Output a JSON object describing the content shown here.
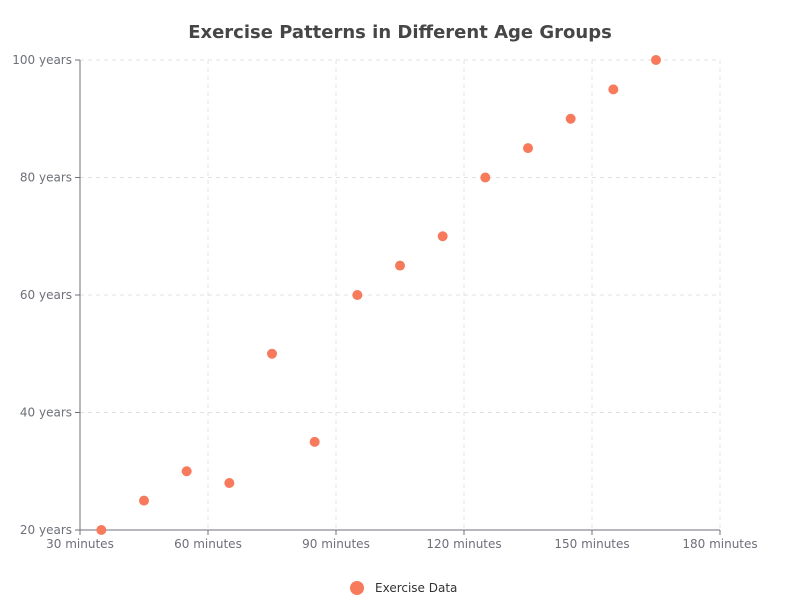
{
  "chart_data": {
    "type": "scatter",
    "title": "Exercise Patterns in Different Age Groups",
    "xlabel": "",
    "ylabel": "",
    "xlim": [
      30,
      180
    ],
    "ylim": [
      20,
      100
    ],
    "x_ticks": [
      30,
      60,
      90,
      120,
      150,
      180
    ],
    "x_tick_labels": [
      "30 minutes",
      "60 minutes",
      "90 minutes",
      "120 minutes",
      "150 minutes",
      "180 minutes"
    ],
    "y_ticks": [
      20,
      40,
      60,
      80,
      100
    ],
    "y_tick_labels": [
      "20 years",
      "40 years",
      "60 years",
      "80 years",
      "100 years"
    ],
    "grid": true,
    "legend": {
      "position": "bottom-center"
    },
    "series": [
      {
        "name": "Exercise Data",
        "color": "#f67a5b",
        "points": [
          {
            "x": 35,
            "y": 20
          },
          {
            "x": 45,
            "y": 25
          },
          {
            "x": 55,
            "y": 30
          },
          {
            "x": 65,
            "y": 28
          },
          {
            "x": 75,
            "y": 50
          },
          {
            "x": 85,
            "y": 35
          },
          {
            "x": 95,
            "y": 60
          },
          {
            "x": 105,
            "y": 65
          },
          {
            "x": 115,
            "y": 70
          },
          {
            "x": 125,
            "y": 80
          },
          {
            "x": 135,
            "y": 85
          },
          {
            "x": 145,
            "y": 90
          },
          {
            "x": 155,
            "y": 95
          },
          {
            "x": 165,
            "y": 100
          }
        ]
      }
    ]
  }
}
